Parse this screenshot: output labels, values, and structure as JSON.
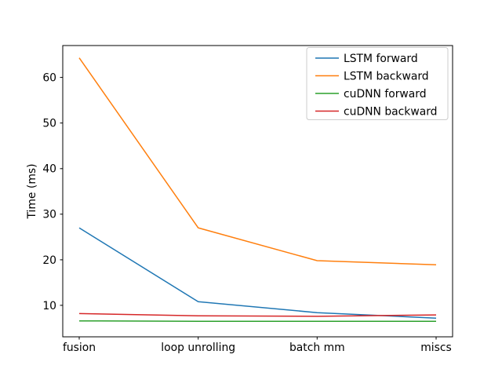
{
  "figure": {
    "background": "#ffffff"
  },
  "chart_data": {
    "type": "line",
    "title": "",
    "xlabel": "",
    "ylabel": "Time (ms)",
    "categories": [
      "fusion",
      "loop unrolling",
      "batch mm",
      "miscs"
    ],
    "series": [
      {
        "name": "LSTM forward",
        "color": "#1f77b4",
        "values": [
          27.0,
          10.8,
          8.4,
          7.2
        ]
      },
      {
        "name": "LSTM backward",
        "color": "#ff7f0e",
        "values": [
          64.3,
          27.0,
          19.8,
          18.9
        ]
      },
      {
        "name": "cuDNN forward",
        "color": "#2ca02c",
        "values": [
          6.6,
          6.5,
          6.5,
          6.5
        ]
      },
      {
        "name": "cuDNN backward",
        "color": "#d62728",
        "values": [
          8.2,
          7.7,
          7.6,
          7.9
        ]
      }
    ],
    "yticks": [
      10,
      20,
      30,
      40,
      50,
      60
    ],
    "ylim": [
      3.1,
      67.0
    ],
    "legend_position": "upper right",
    "grid": false,
    "line_width": 1.5,
    "axis_color": "#000000",
    "legend_border_color": "#cccccc",
    "legend_fill": "#ffffff"
  }
}
